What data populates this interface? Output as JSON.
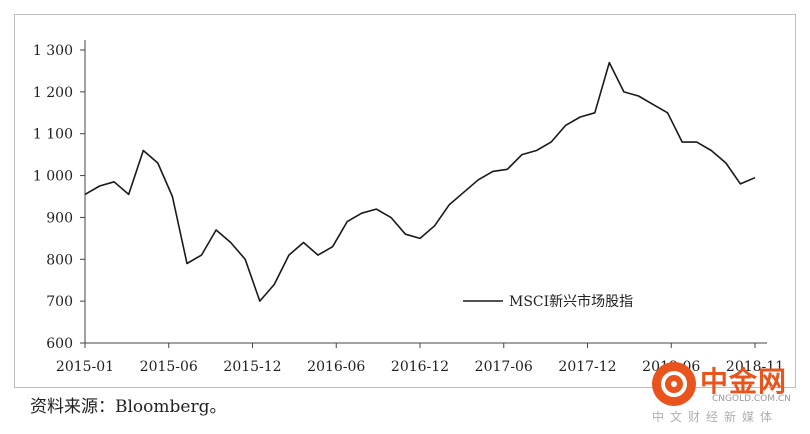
{
  "chart_data": {
    "type": "line",
    "title": "",
    "xlabel": "",
    "ylabel": "",
    "ylim": [
      600,
      1300
    ],
    "y_ticks": [
      600,
      700,
      800,
      900,
      1000,
      1100,
      1200,
      1300
    ],
    "y_tick_labels": [
      "600",
      "700",
      "800",
      "900",
      "1 000",
      "1 100",
      "1 200",
      "1 300"
    ],
    "x_ticks": [
      "2015-01",
      "2015-06",
      "2015-12",
      "2016-06",
      "2016-12",
      "2017-06",
      "2017-12",
      "2018-06",
      "2018-11"
    ],
    "grid": false,
    "legend_position": "bottom-right",
    "series": [
      {
        "name": "MSCI新兴市场股指",
        "color": "#1a1a1a",
        "x": [
          "2015-01",
          "2015-02",
          "2015-03",
          "2015-04",
          "2015-05",
          "2015-06",
          "2015-07",
          "2015-08",
          "2015-09",
          "2015-10",
          "2015-11",
          "2015-12",
          "2016-01",
          "2016-02",
          "2016-03",
          "2016-04",
          "2016-05",
          "2016-06",
          "2016-07",
          "2016-08",
          "2016-09",
          "2016-10",
          "2016-11",
          "2016-12",
          "2017-01",
          "2017-02",
          "2017-03",
          "2017-04",
          "2017-05",
          "2017-06",
          "2017-07",
          "2017-08",
          "2017-09",
          "2017-10",
          "2017-11",
          "2017-12",
          "2018-01",
          "2018-02",
          "2018-03",
          "2018-04",
          "2018-05",
          "2018-06",
          "2018-07",
          "2018-08",
          "2018-09",
          "2018-10",
          "2018-11"
        ],
        "values": [
          955,
          975,
          985,
          955,
          1060,
          1030,
          950,
          790,
          810,
          870,
          840,
          800,
          700,
          740,
          810,
          840,
          810,
          830,
          890,
          910,
          920,
          900,
          860,
          850,
          880,
          930,
          960,
          990,
          1010,
          1015,
          1050,
          1060,
          1080,
          1120,
          1140,
          1150,
          1270,
          1200,
          1190,
          1170,
          1150,
          1080,
          1080,
          1060,
          1030,
          980,
          995
        ]
      }
    ]
  },
  "source": "资料来源：Bloomberg。",
  "watermark": {
    "name": "中金网",
    "url": "CNGOLD.COM.CN",
    "tagline": "中文财经新媒体",
    "color": "#e8541c"
  }
}
